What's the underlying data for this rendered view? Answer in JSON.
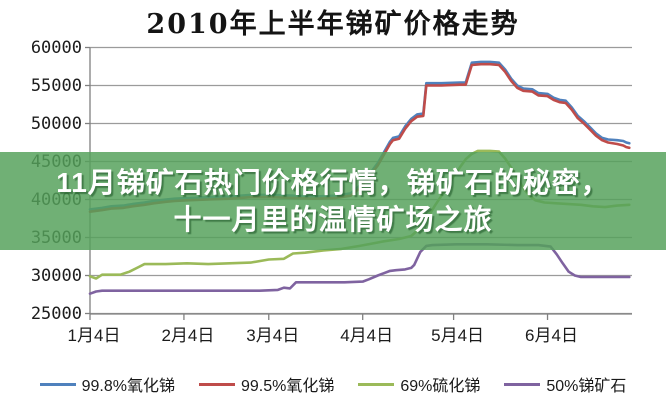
{
  "overlay": {
    "line1": "11月锑矿石热门价格行情，锑矿石的秘密，",
    "line2": "十一月里的温情矿场之旅",
    "bg": "#55a15b",
    "bg_opacity": 0.84,
    "text_color": "#ffffff"
  },
  "chart_data": {
    "type": "line",
    "title": "2010年上半年锑矿价格走势",
    "xlabel": "",
    "ylabel": "",
    "ylim": [
      25000,
      60000
    ],
    "ytick_step": 5000,
    "grid": "horizontal",
    "legend_position": "bottom",
    "y_ticks": [
      "60000",
      "55000",
      "50000",
      "45000",
      "40000",
      "35000",
      "30000",
      "25000"
    ],
    "x_ticks": [
      {
        "label": "1月4日",
        "day": 4
      },
      {
        "label": "2月4日",
        "day": 35
      },
      {
        "label": "3月4日",
        "day": 63
      },
      {
        "label": "4月4日",
        "day": 94
      },
      {
        "label": "5月4日",
        "day": 124
      },
      {
        "label": "6月4日",
        "day": 155
      }
    ],
    "x_unit": "day_of_year_2010",
    "series": [
      {
        "name": "99.8%氧化锑",
        "color": "#4f81bd",
        "points": [
          [
            4,
            38700
          ],
          [
            8,
            38900
          ],
          [
            11,
            39100
          ],
          [
            15,
            39200
          ],
          [
            18,
            39400
          ],
          [
            22,
            39600
          ],
          [
            25,
            39800
          ],
          [
            29,
            40000
          ],
          [
            32,
            40100
          ],
          [
            36,
            40200
          ],
          [
            43,
            40300
          ],
          [
            50,
            40400
          ],
          [
            57,
            40600
          ],
          [
            64,
            40600
          ],
          [
            71,
            40500
          ],
          [
            78,
            40400
          ],
          [
            85,
            40500
          ],
          [
            90,
            40800
          ],
          [
            93,
            41800
          ],
          [
            96,
            43200
          ],
          [
            99,
            44800
          ],
          [
            101,
            46200
          ],
          [
            103,
            47600
          ],
          [
            104,
            48100
          ],
          [
            106,
            48300
          ],
          [
            108,
            49600
          ],
          [
            110,
            50600
          ],
          [
            112,
            51200
          ],
          [
            114,
            51300
          ],
          [
            115,
            55300
          ],
          [
            120,
            55300
          ],
          [
            126,
            55400
          ],
          [
            128,
            55400
          ],
          [
            130,
            58000
          ],
          [
            133,
            58100
          ],
          [
            136,
            58100
          ],
          [
            139,
            58000
          ],
          [
            141,
            57100
          ],
          [
            143,
            55900
          ],
          [
            145,
            55000
          ],
          [
            147,
            54600
          ],
          [
            150,
            54500
          ],
          [
            152,
            54000
          ],
          [
            155,
            53900
          ],
          [
            157,
            53400
          ],
          [
            159,
            53100
          ],
          [
            161,
            53000
          ],
          [
            163,
            52100
          ],
          [
            165,
            51000
          ],
          [
            167,
            50300
          ],
          [
            169,
            49500
          ],
          [
            171,
            48700
          ],
          [
            173,
            48100
          ],
          [
            175,
            47900
          ],
          [
            178,
            47800
          ],
          [
            180,
            47700
          ],
          [
            181,
            47500
          ],
          [
            182,
            47400
          ]
        ]
      },
      {
        "name": "99.5%氧化锑",
        "color": "#bf4c4a",
        "points": [
          [
            4,
            38400
          ],
          [
            8,
            38600
          ],
          [
            11,
            38800
          ],
          [
            15,
            38900
          ],
          [
            18,
            39100
          ],
          [
            22,
            39300
          ],
          [
            25,
            39500
          ],
          [
            29,
            39700
          ],
          [
            32,
            39800
          ],
          [
            36,
            39900
          ],
          [
            43,
            40000
          ],
          [
            50,
            40100
          ],
          [
            57,
            40300
          ],
          [
            64,
            40300
          ],
          [
            71,
            40200
          ],
          [
            78,
            40100
          ],
          [
            85,
            40200
          ],
          [
            90,
            40500
          ],
          [
            93,
            41500
          ],
          [
            96,
            42900
          ],
          [
            99,
            44500
          ],
          [
            101,
            45900
          ],
          [
            103,
            47300
          ],
          [
            104,
            47800
          ],
          [
            106,
            48000
          ],
          [
            108,
            49300
          ],
          [
            110,
            50300
          ],
          [
            112,
            50900
          ],
          [
            114,
            51000
          ],
          [
            115,
            55000
          ],
          [
            120,
            55000
          ],
          [
            126,
            55100
          ],
          [
            128,
            55100
          ],
          [
            130,
            57700
          ],
          [
            133,
            57800
          ],
          [
            136,
            57800
          ],
          [
            139,
            57700
          ],
          [
            141,
            56800
          ],
          [
            143,
            55600
          ],
          [
            145,
            54700
          ],
          [
            147,
            54300
          ],
          [
            150,
            54200
          ],
          [
            152,
            53700
          ],
          [
            155,
            53600
          ],
          [
            157,
            53100
          ],
          [
            159,
            52800
          ],
          [
            161,
            52700
          ],
          [
            163,
            51800
          ],
          [
            165,
            50700
          ],
          [
            167,
            50000
          ],
          [
            169,
            49200
          ],
          [
            171,
            48400
          ],
          [
            173,
            47800
          ],
          [
            175,
            47500
          ],
          [
            178,
            47300
          ],
          [
            180,
            47100
          ],
          [
            181,
            46900
          ],
          [
            182,
            46800
          ]
        ]
      },
      {
        "name": "69%硫化锑",
        "color": "#9bba59",
        "points": [
          [
            4,
            29900
          ],
          [
            6,
            29600
          ],
          [
            8,
            30100
          ],
          [
            14,
            30100
          ],
          [
            17,
            30500
          ],
          [
            20,
            31100
          ],
          [
            22,
            31500
          ],
          [
            29,
            31500
          ],
          [
            36,
            31600
          ],
          [
            43,
            31500
          ],
          [
            50,
            31600
          ],
          [
            57,
            31700
          ],
          [
            63,
            32100
          ],
          [
            68,
            32200
          ],
          [
            71,
            32900
          ],
          [
            75,
            33000
          ],
          [
            81,
            33300
          ],
          [
            87,
            33500
          ],
          [
            93,
            33900
          ],
          [
            97,
            34200
          ],
          [
            101,
            34500
          ],
          [
            106,
            34800
          ],
          [
            110,
            35200
          ],
          [
            112,
            35900
          ],
          [
            114,
            36800
          ],
          [
            116,
            38000
          ],
          [
            118,
            39300
          ],
          [
            120,
            40500
          ],
          [
            122,
            41800
          ],
          [
            124,
            43000
          ],
          [
            126,
            44200
          ],
          [
            128,
            45300
          ],
          [
            130,
            46000
          ],
          [
            132,
            46400
          ],
          [
            136,
            46400
          ],
          [
            139,
            46300
          ],
          [
            141,
            45400
          ],
          [
            143,
            44200
          ],
          [
            145,
            42900
          ],
          [
            147,
            41500
          ],
          [
            149,
            40500
          ],
          [
            151,
            39900
          ],
          [
            154,
            39600
          ],
          [
            158,
            39500
          ],
          [
            162,
            39400
          ],
          [
            166,
            39300
          ],
          [
            170,
            39100
          ],
          [
            174,
            39000
          ],
          [
            178,
            39200
          ],
          [
            182,
            39300
          ]
        ]
      },
      {
        "name": "50%锑矿石",
        "color": "#7f63a0",
        "points": [
          [
            4,
            27600
          ],
          [
            6,
            27900
          ],
          [
            8,
            28000
          ],
          [
            20,
            28000
          ],
          [
            36,
            28000
          ],
          [
            50,
            28000
          ],
          [
            60,
            28000
          ],
          [
            66,
            28100
          ],
          [
            68,
            28400
          ],
          [
            70,
            28300
          ],
          [
            72,
            29100
          ],
          [
            80,
            29100
          ],
          [
            88,
            29100
          ],
          [
            94,
            29200
          ],
          [
            96,
            29500
          ],
          [
            99,
            30000
          ],
          [
            101,
            30300
          ],
          [
            103,
            30600
          ],
          [
            105,
            30700
          ],
          [
            108,
            30800
          ],
          [
            110,
            31000
          ],
          [
            111,
            31400
          ],
          [
            113,
            33100
          ],
          [
            115,
            33900
          ],
          [
            117,
            34000
          ],
          [
            125,
            34100
          ],
          [
            135,
            34100
          ],
          [
            145,
            34000
          ],
          [
            152,
            34000
          ],
          [
            156,
            33800
          ],
          [
            158,
            32800
          ],
          [
            160,
            31600
          ],
          [
            162,
            30500
          ],
          [
            164,
            30000
          ],
          [
            166,
            29800
          ],
          [
            170,
            29800
          ],
          [
            175,
            29800
          ],
          [
            182,
            29800
          ]
        ]
      }
    ]
  }
}
